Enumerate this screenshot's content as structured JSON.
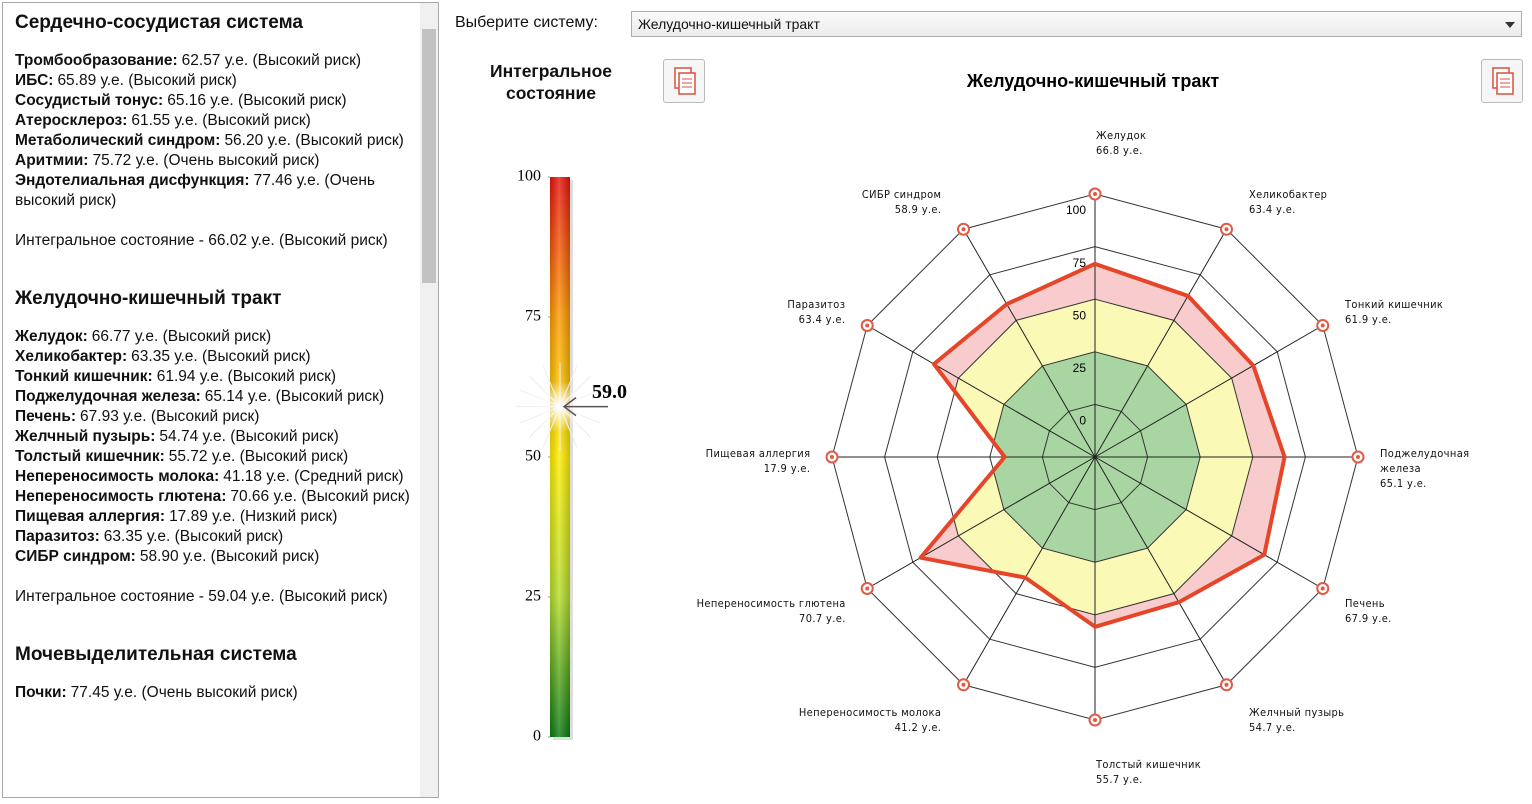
{
  "sidebar": {
    "sections": [
      {
        "title": "Сердечно-сосудистая система",
        "items": [
          {
            "name": "Тромбообразование:",
            "text": "62.57 у.е. (Высокий риск)"
          },
          {
            "name": "ИБС:",
            "text": "65.89 у.е. (Высокий риск)"
          },
          {
            "name": "Сосудистый тонус:",
            "text": "65.16 у.е. (Высокий риск)"
          },
          {
            "name": "Атеросклероз:",
            "text": "61.55 у.е. (Высокий риск)"
          },
          {
            "name": "Метаболический синдром:",
            "text": "56.20 у.е. (Высокий риск)"
          },
          {
            "name": "Аритмии:",
            "text": "75.72 у.е. (Очень высокий риск)"
          },
          {
            "name": "Эндотелиальная дисфункция:",
            "text": "77.46 у.е. (Очень высокий риск)"
          }
        ],
        "summary": "Интегральное состояние - 66.02 у.е. (Высокий риск)"
      },
      {
        "title": "Желудочно-кишечный тракт",
        "items": [
          {
            "name": "Желудок:",
            "text": "66.77 у.е. (Высокий риск)"
          },
          {
            "name": "Хеликобактер:",
            "text": "63.35 у.е. (Высокий риск)"
          },
          {
            "name": "Тонкий кишечник:",
            "text": "61.94 у.е. (Высокий риск)"
          },
          {
            "name": "Поджелудочная железа:",
            "text": "65.14 у.е. (Высокий риск)"
          },
          {
            "name": "Печень:",
            "text": "67.93 у.е. (Высокий риск)"
          },
          {
            "name": "Желчный пузырь:",
            "text": "54.74 у.е. (Высокий риск)"
          },
          {
            "name": "Толстый кишечник:",
            "text": "55.72 у.е. (Высокий риск)"
          },
          {
            "name": "Непереносимость молока:",
            "text": "41.18 у.е. (Средний риск)"
          },
          {
            "name": "Непереносимость глютена:",
            "text": "70.66 у.е. (Высокий риск)"
          },
          {
            "name": "Пищевая аллергия:",
            "text": "17.89 у.е. (Низкий риск)"
          },
          {
            "name": "Паразитоз:",
            "text": "63.35 у.е. (Высокий риск)"
          },
          {
            "name": "СИБР синдром:",
            "text": "58.90 у.е. (Высокий риск)"
          }
        ],
        "summary": "Интегральное состояние - 59.04 у.е. (Высокий риск)"
      },
      {
        "title": "Мочевыделительная система",
        "items": [
          {
            "name": "Почки:",
            "text": "77.45 у.е. (Очень высокий риск)"
          }
        ]
      }
    ]
  },
  "selector": {
    "label": "Выберите систему:",
    "value": "Желудочно-кишечный тракт"
  },
  "chart_data": [
    {
      "type": "gauge",
      "title": "Интегральное состояние",
      "value": 59,
      "value_label": "59.0",
      "ylim": [
        0,
        100
      ],
      "yticks": [
        0,
        25,
        50,
        75,
        100
      ],
      "colors": [
        "#0b7a12",
        "#b5dd2a",
        "#ffee00",
        "#ff9a00",
        "#e8130b"
      ]
    },
    {
      "type": "radar",
      "title": "Желудочно-кишечный тракт",
      "categories": [
        "Желудок",
        "Хеликобактер",
        "Тонкий кишечник",
        "Поджелудочная железа",
        "Печень",
        "Желчный пузырь",
        "Толстый кишечник",
        "Непереносимость молока",
        "Непереносимость глютена",
        "Пищевая аллергия",
        "Паразитоз",
        "СИБР синдром"
      ],
      "values": [
        66.8,
        63.4,
        61.9,
        65.1,
        67.9,
        54.7,
        55.7,
        41.2,
        70.7,
        17.9,
        63.4,
        58.9
      ],
      "value_labels": [
        "66.8 у.е.",
        "63.4 у.е.",
        "61.9 у.е.",
        "65.1 у.е.",
        "67.9 у.е.",
        "54.7 у.е.",
        "55.7 у.е.",
        "41.2 у.е.",
        "70.7 у.е.",
        "17.9 у.е.",
        "63.4 у.е.",
        "58.9 у.е."
      ],
      "rlim": [
        -25,
        100
      ],
      "rticks": [
        0,
        25,
        50,
        75,
        100
      ],
      "color": "#e5462a",
      "fill": "#f8cccc",
      "zones": [
        {
          "to": 50,
          "color": "#fbf9b6"
        },
        {
          "to": 25,
          "color": "#a9d5a2"
        }
      ]
    }
  ]
}
